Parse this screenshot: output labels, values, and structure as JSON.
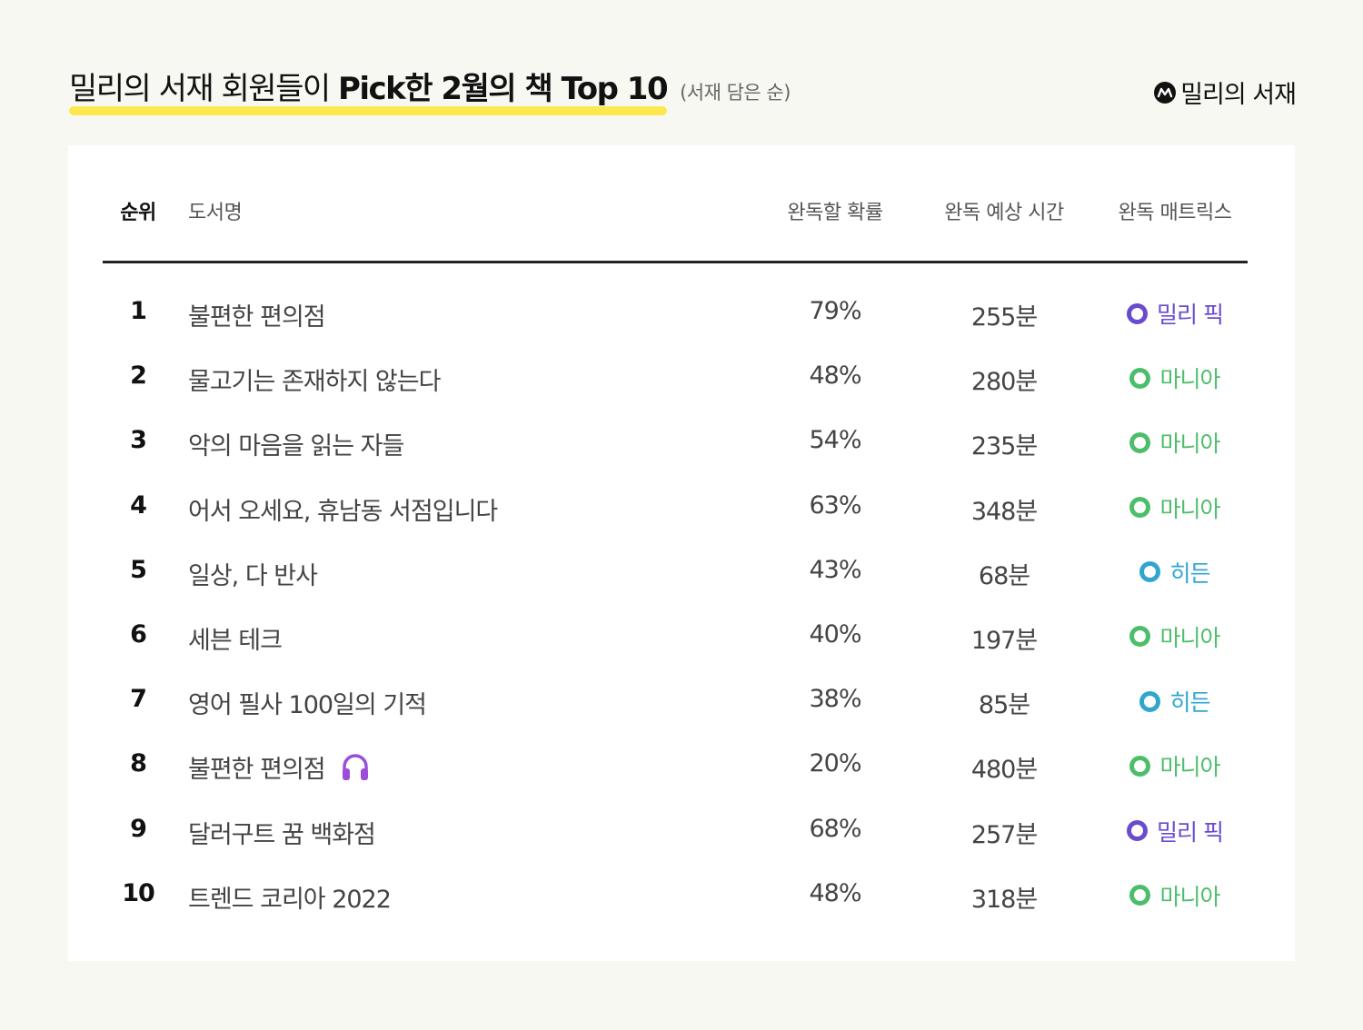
{
  "header": {
    "title_light": "밀리의 서재 회원들이 ",
    "title_bold": "Pick한 2월의 책 Top 10",
    "subtitle": "(서재 담은 순)",
    "brand_name": "밀리의 서재",
    "brand_icon": "millie-logo-icon"
  },
  "table": {
    "columns": {
      "rank": "순위",
      "title": "도서명",
      "probability": "완독할 확률",
      "time": "완독 예상 시간",
      "matrix": "완독 매트릭스"
    },
    "matrix_colors": {
      "밀리 픽": "#6a4bcf",
      "마니아": "#4cbe6b",
      "히든": "#2fa6cf"
    },
    "rows": [
      {
        "rank": "1",
        "title": "불편한 편의점",
        "probability": "79%",
        "time": "255분",
        "matrix": "밀리 픽",
        "audio": false
      },
      {
        "rank": "2",
        "title": "물고기는 존재하지 않는다",
        "probability": "48%",
        "time": "280분",
        "matrix": "마니아",
        "audio": false
      },
      {
        "rank": "3",
        "title": "악의 마음을 읽는 자들",
        "probability": "54%",
        "time": "235분",
        "matrix": "마니아",
        "audio": false
      },
      {
        "rank": "4",
        "title": "어서 오세요, 휴남동 서점입니다",
        "probability": "63%",
        "time": "348분",
        "matrix": "마니아",
        "audio": false
      },
      {
        "rank": "5",
        "title": "일상, 다 반사",
        "probability": "43%",
        "time": "68분",
        "matrix": "히든",
        "audio": false
      },
      {
        "rank": "6",
        "title": "세븐 테크",
        "probability": "40%",
        "time": "197분",
        "matrix": "마니아",
        "audio": false
      },
      {
        "rank": "7",
        "title": "영어 필사 100일의 기적",
        "probability": "38%",
        "time": "85분",
        "matrix": "히든",
        "audio": false
      },
      {
        "rank": "8",
        "title": "불편한 편의점",
        "probability": "20%",
        "time": "480분",
        "matrix": "마니아",
        "audio": true
      },
      {
        "rank": "9",
        "title": "달러구트 꿈 백화점",
        "probability": "68%",
        "time": "257분",
        "matrix": "밀리 픽",
        "audio": false
      },
      {
        "rank": "10",
        "title": "트렌드 코리아 2022",
        "probability": "48%",
        "time": "318분",
        "matrix": "마니아",
        "audio": false
      }
    ]
  }
}
